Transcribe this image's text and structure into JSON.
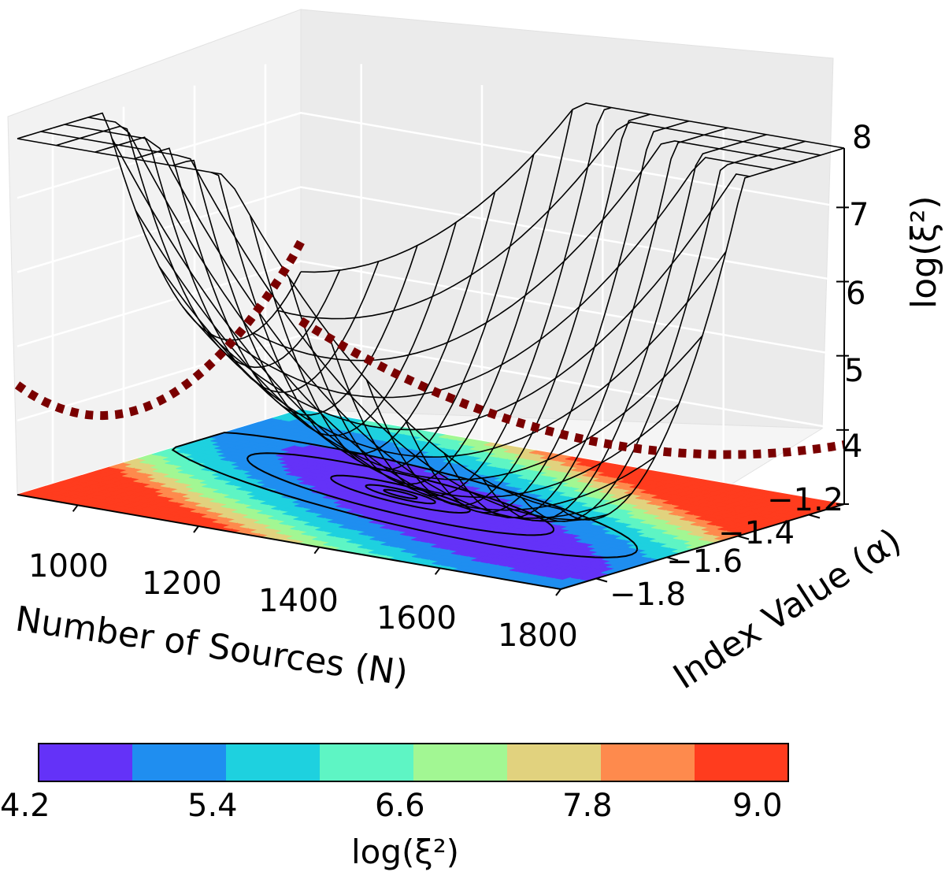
{
  "chart_data": {
    "type": "surface3d",
    "title": "",
    "xlabel": "Number of Sources (N)",
    "ylabel": "Index Value (α)",
    "zlabel": "log(ξ²)",
    "x_ticks": [
      "1000",
      "1200",
      "1400",
      "1600",
      "1800"
    ],
    "x_tick_values": [
      1000,
      1200,
      1400,
      1600,
      1800
    ],
    "y_ticks": [
      "−1.8",
      "−1.6",
      "−1.4",
      "−1.2"
    ],
    "y_tick_values": [
      -1.8,
      -1.6,
      -1.4,
      -1.2
    ],
    "z_ticks": [
      "4",
      "5",
      "6",
      "7",
      "8"
    ],
    "z_tick_values": [
      4,
      5,
      6,
      7,
      8
    ],
    "xlim": [
      900,
      1800
    ],
    "ylim": [
      -1.9,
      -1.1
    ],
    "zlim": [
      4,
      8.8
    ],
    "surface_minimum": {
      "N": 1300,
      "alpha": -1.5,
      "log_xi2": 4.3
    },
    "contour_levels": [
      4.8,
      5.4,
      6.0,
      6.6,
      7.2,
      7.8,
      8.4
    ],
    "projected_curves": [
      {
        "name": "profile along N",
        "color": "#7a0000"
      },
      {
        "name": "profile along alpha",
        "color": "#7a0000"
      }
    ],
    "colorbar": {
      "label": "log(ξ²)",
      "tick_labels": [
        "4.2",
        "5.4",
        "6.6",
        "7.8",
        "9.0"
      ],
      "tick_values": [
        4.2,
        5.4,
        6.6,
        7.8,
        9.0
      ],
      "boundaries": [
        4.2,
        4.8,
        5.4,
        6.0,
        6.6,
        7.2,
        7.8,
        8.4,
        9.0
      ],
      "colors": [
        "#6432f8",
        "#1f8ef0",
        "#1ed1df",
        "#5ef5c4",
        "#a2f793",
        "#e1d27e",
        "#fe8a4d",
        "#ff3c1e"
      ]
    }
  }
}
